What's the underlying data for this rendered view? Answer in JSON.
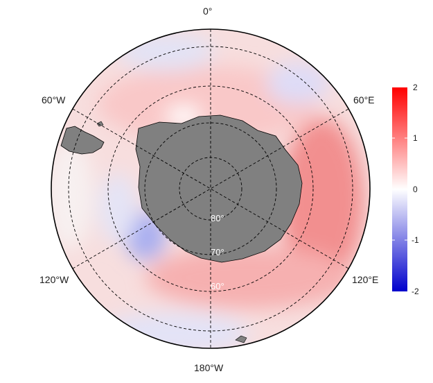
{
  "map": {
    "projection": "south-polar-stereographic",
    "land_color": "#808080",
    "grid_line_color": "#000000",
    "lon_labels": {
      "top": "0°",
      "upper_left": "60°W",
      "upper_right": "60°E",
      "lower_left": "120°W",
      "lower_right": "120°E",
      "bottom": "180°W"
    },
    "lat_labels": [
      "80°",
      "70°",
      "60°"
    ]
  },
  "colorbar": {
    "ticks": [
      "2",
      "1",
      "0",
      "-1",
      "-2"
    ],
    "range": [
      -2,
      2
    ],
    "colors": {
      "max": "#ff0000",
      "mid": "#ffffff",
      "min": "#0000cc"
    }
  }
}
